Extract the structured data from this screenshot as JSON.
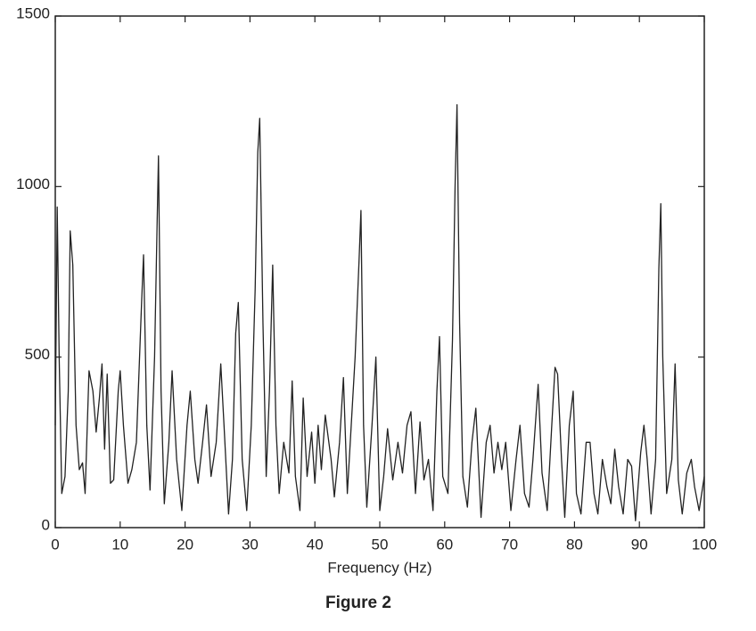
{
  "chart_data": {
    "type": "line",
    "xlabel": "Frequency (Hz)",
    "caption": "Figure 2",
    "xlim": [
      0,
      100
    ],
    "ylim": [
      0,
      1500
    ],
    "xticks": [
      0,
      10,
      20,
      30,
      40,
      50,
      60,
      70,
      80,
      90,
      100
    ],
    "yticks": [
      0,
      500,
      1000,
      1500
    ],
    "series": [
      {
        "color": "#222222",
        "x": [
          0,
          0.3,
          0.6,
          1,
          1.5,
          2,
          2.3,
          2.7,
          3.2,
          3.7,
          4.2,
          4.6,
          5.2,
          5.8,
          6.3,
          6.8,
          7.2,
          7.6,
          8,
          8.5,
          9,
          9.7,
          10,
          10.5,
          11.2,
          11.8,
          12.5,
          13.3,
          13.6,
          14.1,
          14.6,
          15.3,
          15.7,
          15.9,
          16.3,
          16.8,
          17.5,
          18,
          18.7,
          19.5,
          20.3,
          20.8,
          21.5,
          22,
          22.7,
          23.3,
          24,
          24.8,
          25.5,
          26,
          26.7,
          27.3,
          27.8,
          28.2,
          28.8,
          29.5,
          30.2,
          30.8,
          31.2,
          31.5,
          32,
          32.5,
          33,
          33.5,
          34,
          34.5,
          35.2,
          36,
          36.5,
          37,
          37.7,
          38.2,
          38.8,
          39.5,
          40,
          40.5,
          41,
          41.6,
          42.5,
          43,
          43.8,
          44.4,
          45,
          45.6,
          46.2,
          46.8,
          47.1,
          47.5,
          48,
          48.8,
          49.4,
          50,
          50.6,
          51.2,
          52,
          52.8,
          53.5,
          54.2,
          54.8,
          55.5,
          56.2,
          56.8,
          57.5,
          58.2,
          58.8,
          59.2,
          59.7,
          60.5,
          61.2,
          61.6,
          61.9,
          62.3,
          62.8,
          63.5,
          64.2,
          64.8,
          65.6,
          66.4,
          67,
          67.6,
          68.2,
          68.8,
          69.4,
          70.2,
          71,
          71.6,
          72.3,
          73,
          73.6,
          74.4,
          75,
          75.8,
          76.5,
          77,
          77.4,
          78,
          78.5,
          79.2,
          79.8,
          80.3,
          81,
          81.8,
          82.4,
          83,
          83.6,
          84.3,
          85,
          85.6,
          86.2,
          86.8,
          87.5,
          88.2,
          88.8,
          89.4,
          90.2,
          90.7,
          91.2,
          91.8,
          92.5,
          93,
          93.3,
          93.6,
          94.2,
          95,
          95.5,
          96,
          96.6,
          97.3,
          98,
          98.5,
          99.2,
          100
        ],
        "values": [
          300,
          940,
          500,
          100,
          150,
          400,
          870,
          770,
          300,
          170,
          190,
          100,
          460,
          400,
          280,
          380,
          480,
          230,
          450,
          130,
          140,
          400,
          460,
          300,
          130,
          170,
          250,
          660,
          800,
          300,
          110,
          500,
          900,
          1090,
          400,
          70,
          250,
          460,
          200,
          50,
          300,
          400,
          200,
          130,
          250,
          360,
          150,
          250,
          480,
          300,
          40,
          200,
          570,
          660,
          200,
          50,
          300,
          700,
          1100,
          1200,
          600,
          150,
          400,
          770,
          300,
          100,
          250,
          160,
          430,
          150,
          50,
          380,
          150,
          280,
          130,
          300,
          170,
          330,
          200,
          90,
          250,
          440,
          100,
          300,
          500,
          780,
          930,
          300,
          60,
          300,
          500,
          50,
          150,
          290,
          140,
          250,
          160,
          300,
          340,
          100,
          310,
          140,
          200,
          50,
          400,
          560,
          150,
          100,
          550,
          1000,
          1240,
          600,
          150,
          60,
          250,
          350,
          30,
          250,
          300,
          160,
          250,
          170,
          250,
          50,
          200,
          300,
          100,
          60,
          200,
          420,
          160,
          50,
          300,
          470,
          450,
          200,
          30,
          300,
          400,
          100,
          40,
          250,
          250,
          100,
          40,
          200,
          120,
          70,
          230,
          120,
          40,
          200,
          180,
          20,
          220,
          300,
          200,
          40,
          200,
          760,
          950,
          500,
          100,
          200,
          480,
          140,
          40,
          160,
          200,
          120,
          50,
          150
        ]
      }
    ]
  }
}
